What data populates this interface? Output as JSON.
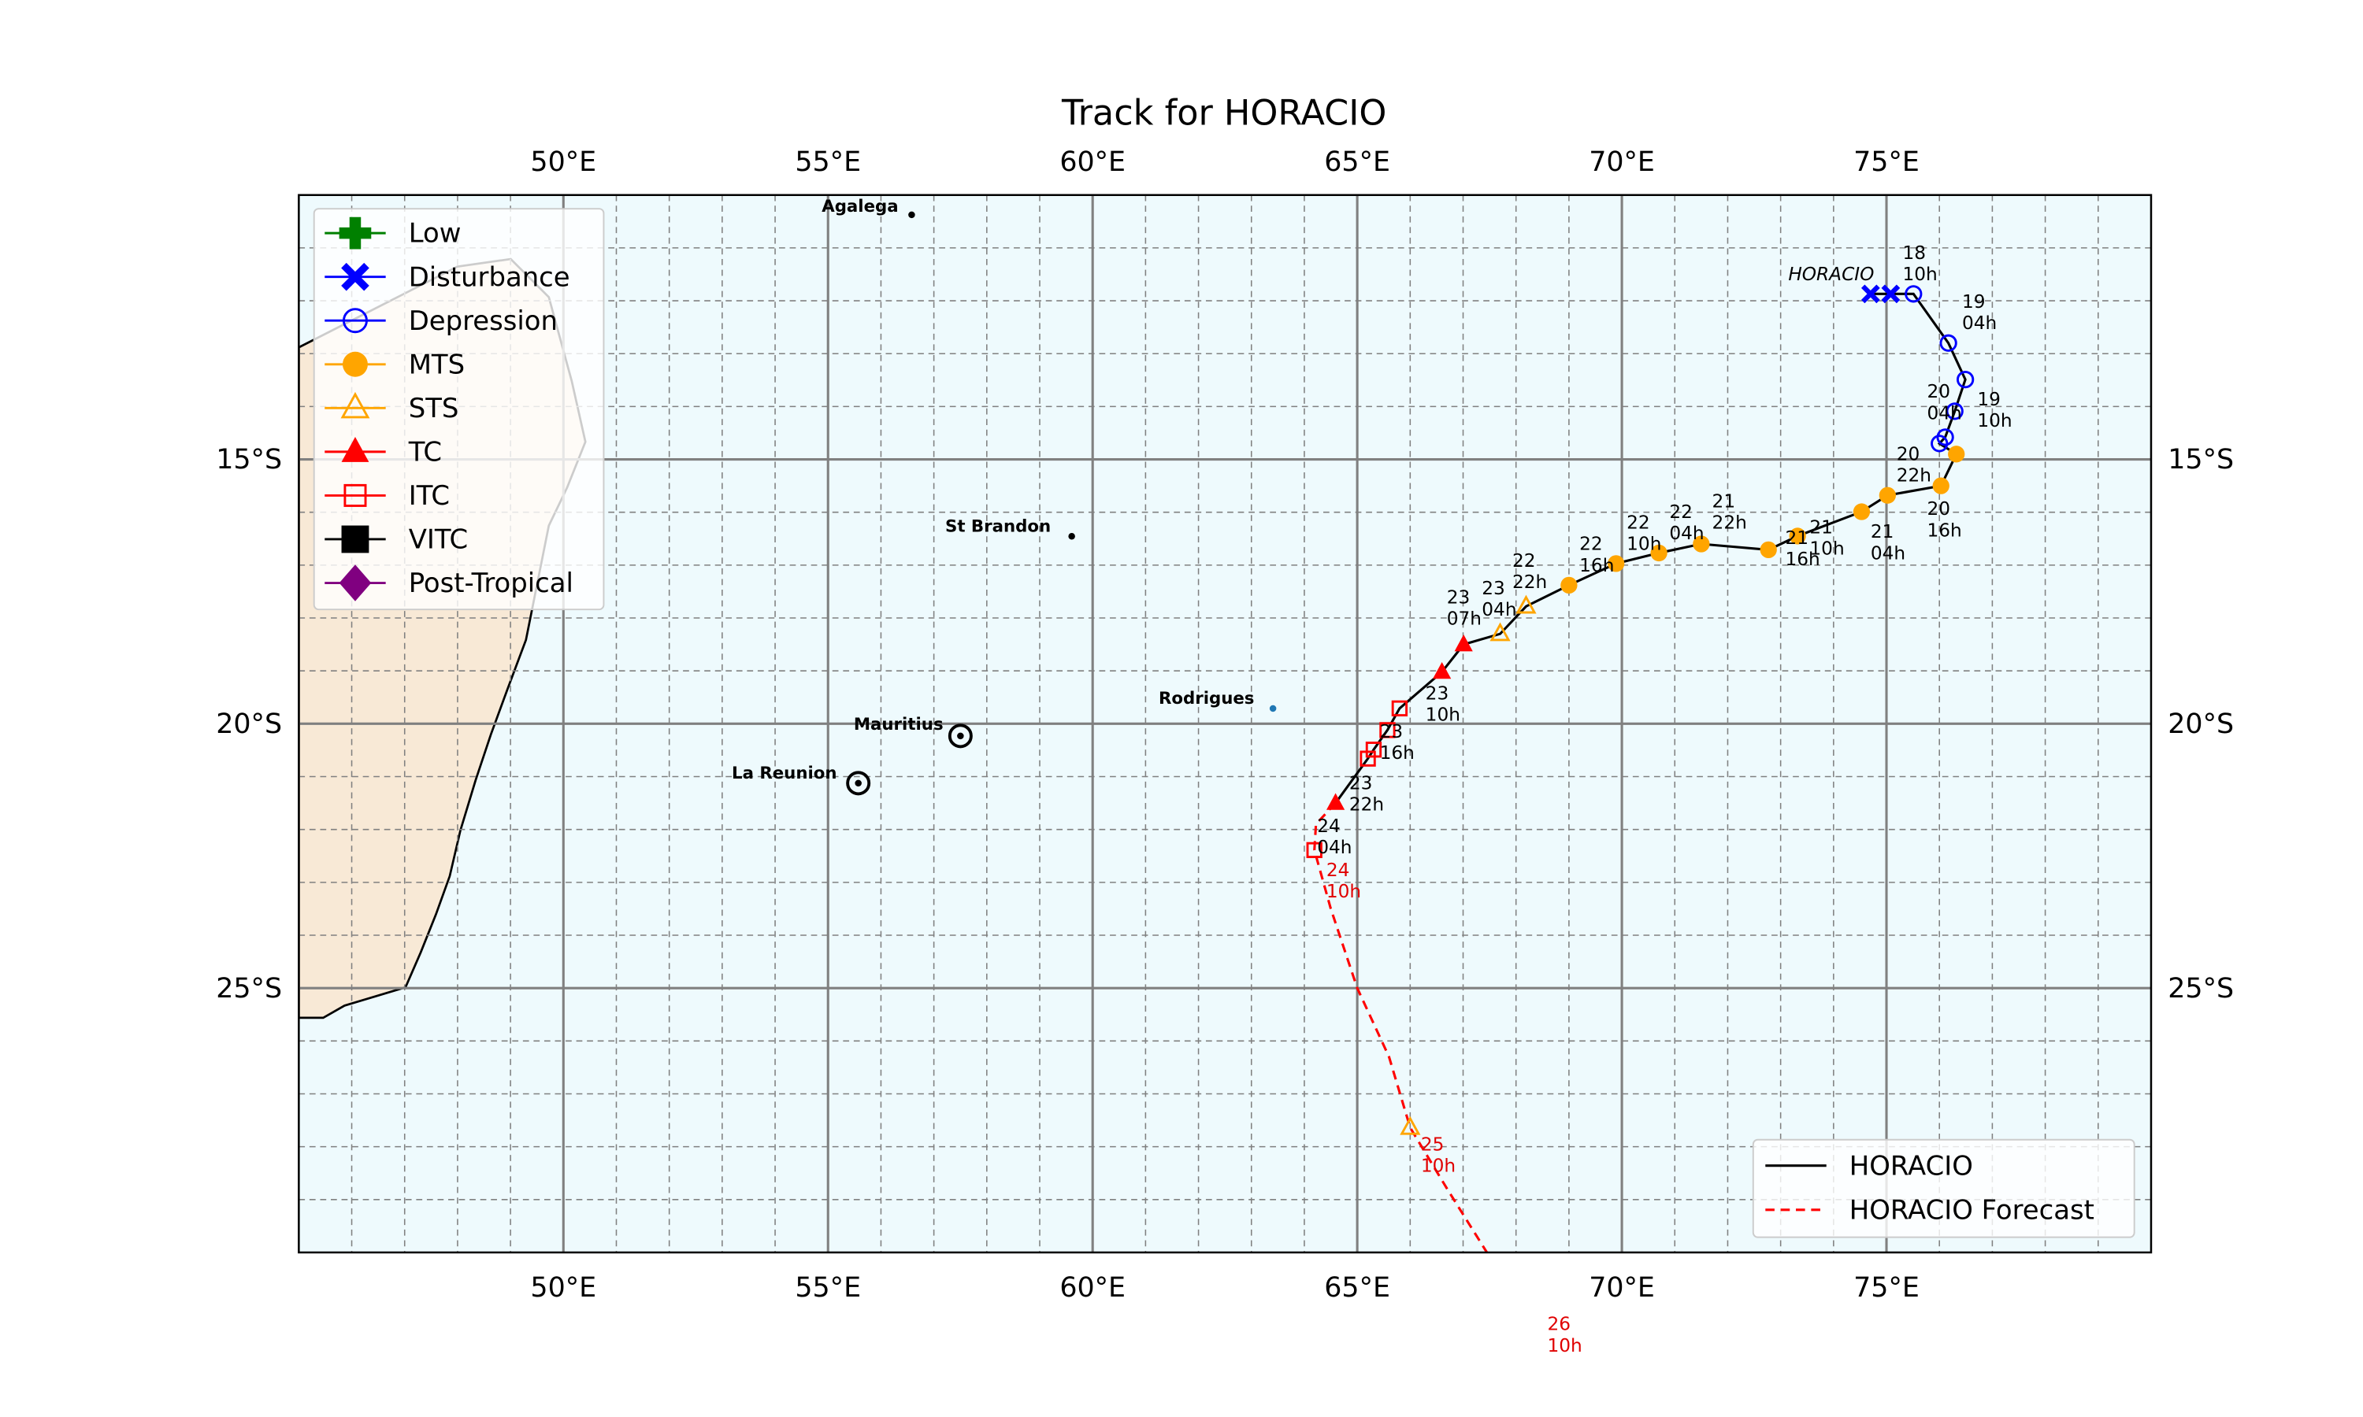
{
  "chart_data": {
    "type": "line",
    "title": "Track for HORACIO",
    "xlabel": "",
    "ylabel": "",
    "xlim": [
      45,
      80
    ],
    "ylim": [
      -30,
      -10
    ],
    "grid": true,
    "x_ticks": [
      {
        "value": 50,
        "label": "50°E"
      },
      {
        "value": 55,
        "label": "55°E"
      },
      {
        "value": 60,
        "label": "60°E"
      },
      {
        "value": 65,
        "label": "65°E"
      },
      {
        "value": 70,
        "label": "70°E"
      },
      {
        "value": 75,
        "label": "75°E"
      }
    ],
    "y_ticks": [
      {
        "value": -15,
        "label": "15°S"
      },
      {
        "value": -20,
        "label": "20°S"
      },
      {
        "value": -25,
        "label": "25°S"
      }
    ],
    "storm_name_label": "HORACIO",
    "categories_legend": {
      "placement": "top-left",
      "entries": [
        {
          "key": "low",
          "label": "Low",
          "color": "#008000"
        },
        {
          "key": "disturbance",
          "label": "Disturbance",
          "color": "#0000ff"
        },
        {
          "key": "depression",
          "label": "Depression",
          "color": "#0000ff"
        },
        {
          "key": "mts",
          "label": "MTS",
          "color": "#ffa500"
        },
        {
          "key": "sts",
          "label": "STS",
          "color": "#ffa500"
        },
        {
          "key": "tc",
          "label": "TC",
          "color": "#ff0000"
        },
        {
          "key": "itc",
          "label": "ITC",
          "color": "#ff0000"
        },
        {
          "key": "vitc",
          "label": "VITC",
          "color": "#000000"
        },
        {
          "key": "post",
          "label": "Post-Tropical",
          "color": "#800080"
        }
      ]
    },
    "lines_legend": {
      "placement": "bottom-right",
      "entries": [
        {
          "label": "HORACIO",
          "color": "#000000",
          "style": "solid"
        },
        {
          "label": "HORACIO Forecast",
          "color": "#ff0000",
          "style": "dashed"
        }
      ]
    },
    "series": [
      {
        "name": "HORACIO",
        "points": [
          {
            "lon": 74.7,
            "lat": -11.87,
            "cat": "disturbance"
          },
          {
            "lon": 75.08,
            "lat": -11.87,
            "cat": "disturbance"
          },
          {
            "lon": 75.51,
            "lat": -11.87,
            "cat": "depression"
          },
          {
            "lon": 76.17,
            "lat": -12.8,
            "cat": "depression"
          },
          {
            "lon": 76.49,
            "lat": -13.49,
            "cat": "depression"
          },
          {
            "lon": 76.29,
            "lat": -14.09,
            "cat": "depression"
          },
          {
            "lon": 76.11,
            "lat": -14.58,
            "cat": "depression"
          },
          {
            "lon": 76.0,
            "lat": -14.7,
            "cat": "depression"
          },
          {
            "lon": 76.32,
            "lat": -14.9,
            "cat": "mts"
          },
          {
            "lon": 76.03,
            "lat": -15.5,
            "cat": "mts"
          },
          {
            "lon": 75.02,
            "lat": -15.68,
            "cat": "mts"
          },
          {
            "lon": 74.53,
            "lat": -15.99,
            "cat": "mts"
          },
          {
            "lon": 73.32,
            "lat": -16.45,
            "cat": "mts"
          },
          {
            "lon": 72.77,
            "lat": -16.71,
            "cat": "mts"
          },
          {
            "lon": 71.5,
            "lat": -16.6,
            "cat": "mts"
          },
          {
            "lon": 70.7,
            "lat": -16.77,
            "cat": "mts"
          },
          {
            "lon": 69.89,
            "lat": -16.97,
            "cat": "mts"
          },
          {
            "lon": 69.0,
            "lat": -17.38,
            "cat": "mts"
          },
          {
            "lon": 68.19,
            "lat": -17.78,
            "cat": "sts"
          },
          {
            "lon": 67.7,
            "lat": -18.3,
            "cat": "sts"
          },
          {
            "lon": 67.01,
            "lat": -18.5,
            "cat": "tc"
          },
          {
            "lon": 66.6,
            "lat": -19.02,
            "cat": "tc"
          },
          {
            "lon": 65.8,
            "lat": -19.71,
            "cat": "itc"
          },
          {
            "lon": 65.57,
            "lat": -20.12,
            "cat": "itc"
          },
          {
            "lon": 65.31,
            "lat": -20.49,
            "cat": "itc"
          },
          {
            "lon": 65.2,
            "lat": -20.66,
            "cat": "itc"
          },
          {
            "lon": 64.59,
            "lat": -21.5,
            "cat": "tc"
          }
        ]
      },
      {
        "name": "HORACIO Forecast",
        "points": [
          {
            "lon": 64.59,
            "lat": -21.5,
            "cat": null
          },
          {
            "lon": 64.22,
            "lat": -21.9,
            "cat": null
          },
          {
            "lon": 64.19,
            "lat": -22.39,
            "cat": "itc"
          },
          {
            "lon": 64.5,
            "lat": -23.5,
            "cat": null
          },
          {
            "lon": 65.0,
            "lat": -25.0,
            "cat": null
          },
          {
            "lon": 65.6,
            "lat": -26.3,
            "cat": null
          },
          {
            "lon": 66.0,
            "lat": -27.64,
            "cat": "sts"
          },
          {
            "lon": 66.7,
            "lat": -28.8,
            "cat": null
          },
          {
            "lon": 67.45,
            "lat": -30.0,
            "cat": null
          }
        ]
      }
    ],
    "time_labels": [
      {
        "day": "18",
        "hour": "10h"
      },
      {
        "day": "19",
        "hour": "04h"
      },
      {
        "day": "19",
        "hour": "10h"
      },
      {
        "day": "20",
        "hour": "04h"
      },
      {
        "day": "20",
        "hour": "22h"
      },
      {
        "day": "20",
        "hour": "16h"
      },
      {
        "day": "21",
        "hour": "04h"
      },
      {
        "day": "21",
        "hour": "10h"
      },
      {
        "day": "21",
        "hour": "16h"
      },
      {
        "day": "21",
        "hour": "22h"
      },
      {
        "day": "22",
        "hour": "04h"
      },
      {
        "day": "22",
        "hour": "10h"
      },
      {
        "day": "22",
        "hour": "16h"
      },
      {
        "day": "22",
        "hour": "22h"
      },
      {
        "day": "23",
        "hour": "04h"
      },
      {
        "day": "23",
        "hour": "07h"
      },
      {
        "day": "23",
        "hour": "10h"
      },
      {
        "day": "23",
        "hour": "16h"
      },
      {
        "day": "23",
        "hour": "22h"
      },
      {
        "day": "24",
        "hour": "04h"
      }
    ],
    "forecast_time_labels": [
      {
        "day": "24",
        "hour": "10h"
      },
      {
        "day": "25",
        "hour": "10h"
      },
      {
        "day": "26",
        "hour": "10h"
      }
    ],
    "places": [
      {
        "name": "Agalega"
      },
      {
        "name": "St Brandon"
      },
      {
        "name": "Rodrigues"
      },
      {
        "name": "Mauritius"
      },
      {
        "name": "La Reunion"
      }
    ],
    "colors": {
      "ocean": "#eefafd",
      "land": "#f8e9d6",
      "grid": "#808080"
    }
  }
}
